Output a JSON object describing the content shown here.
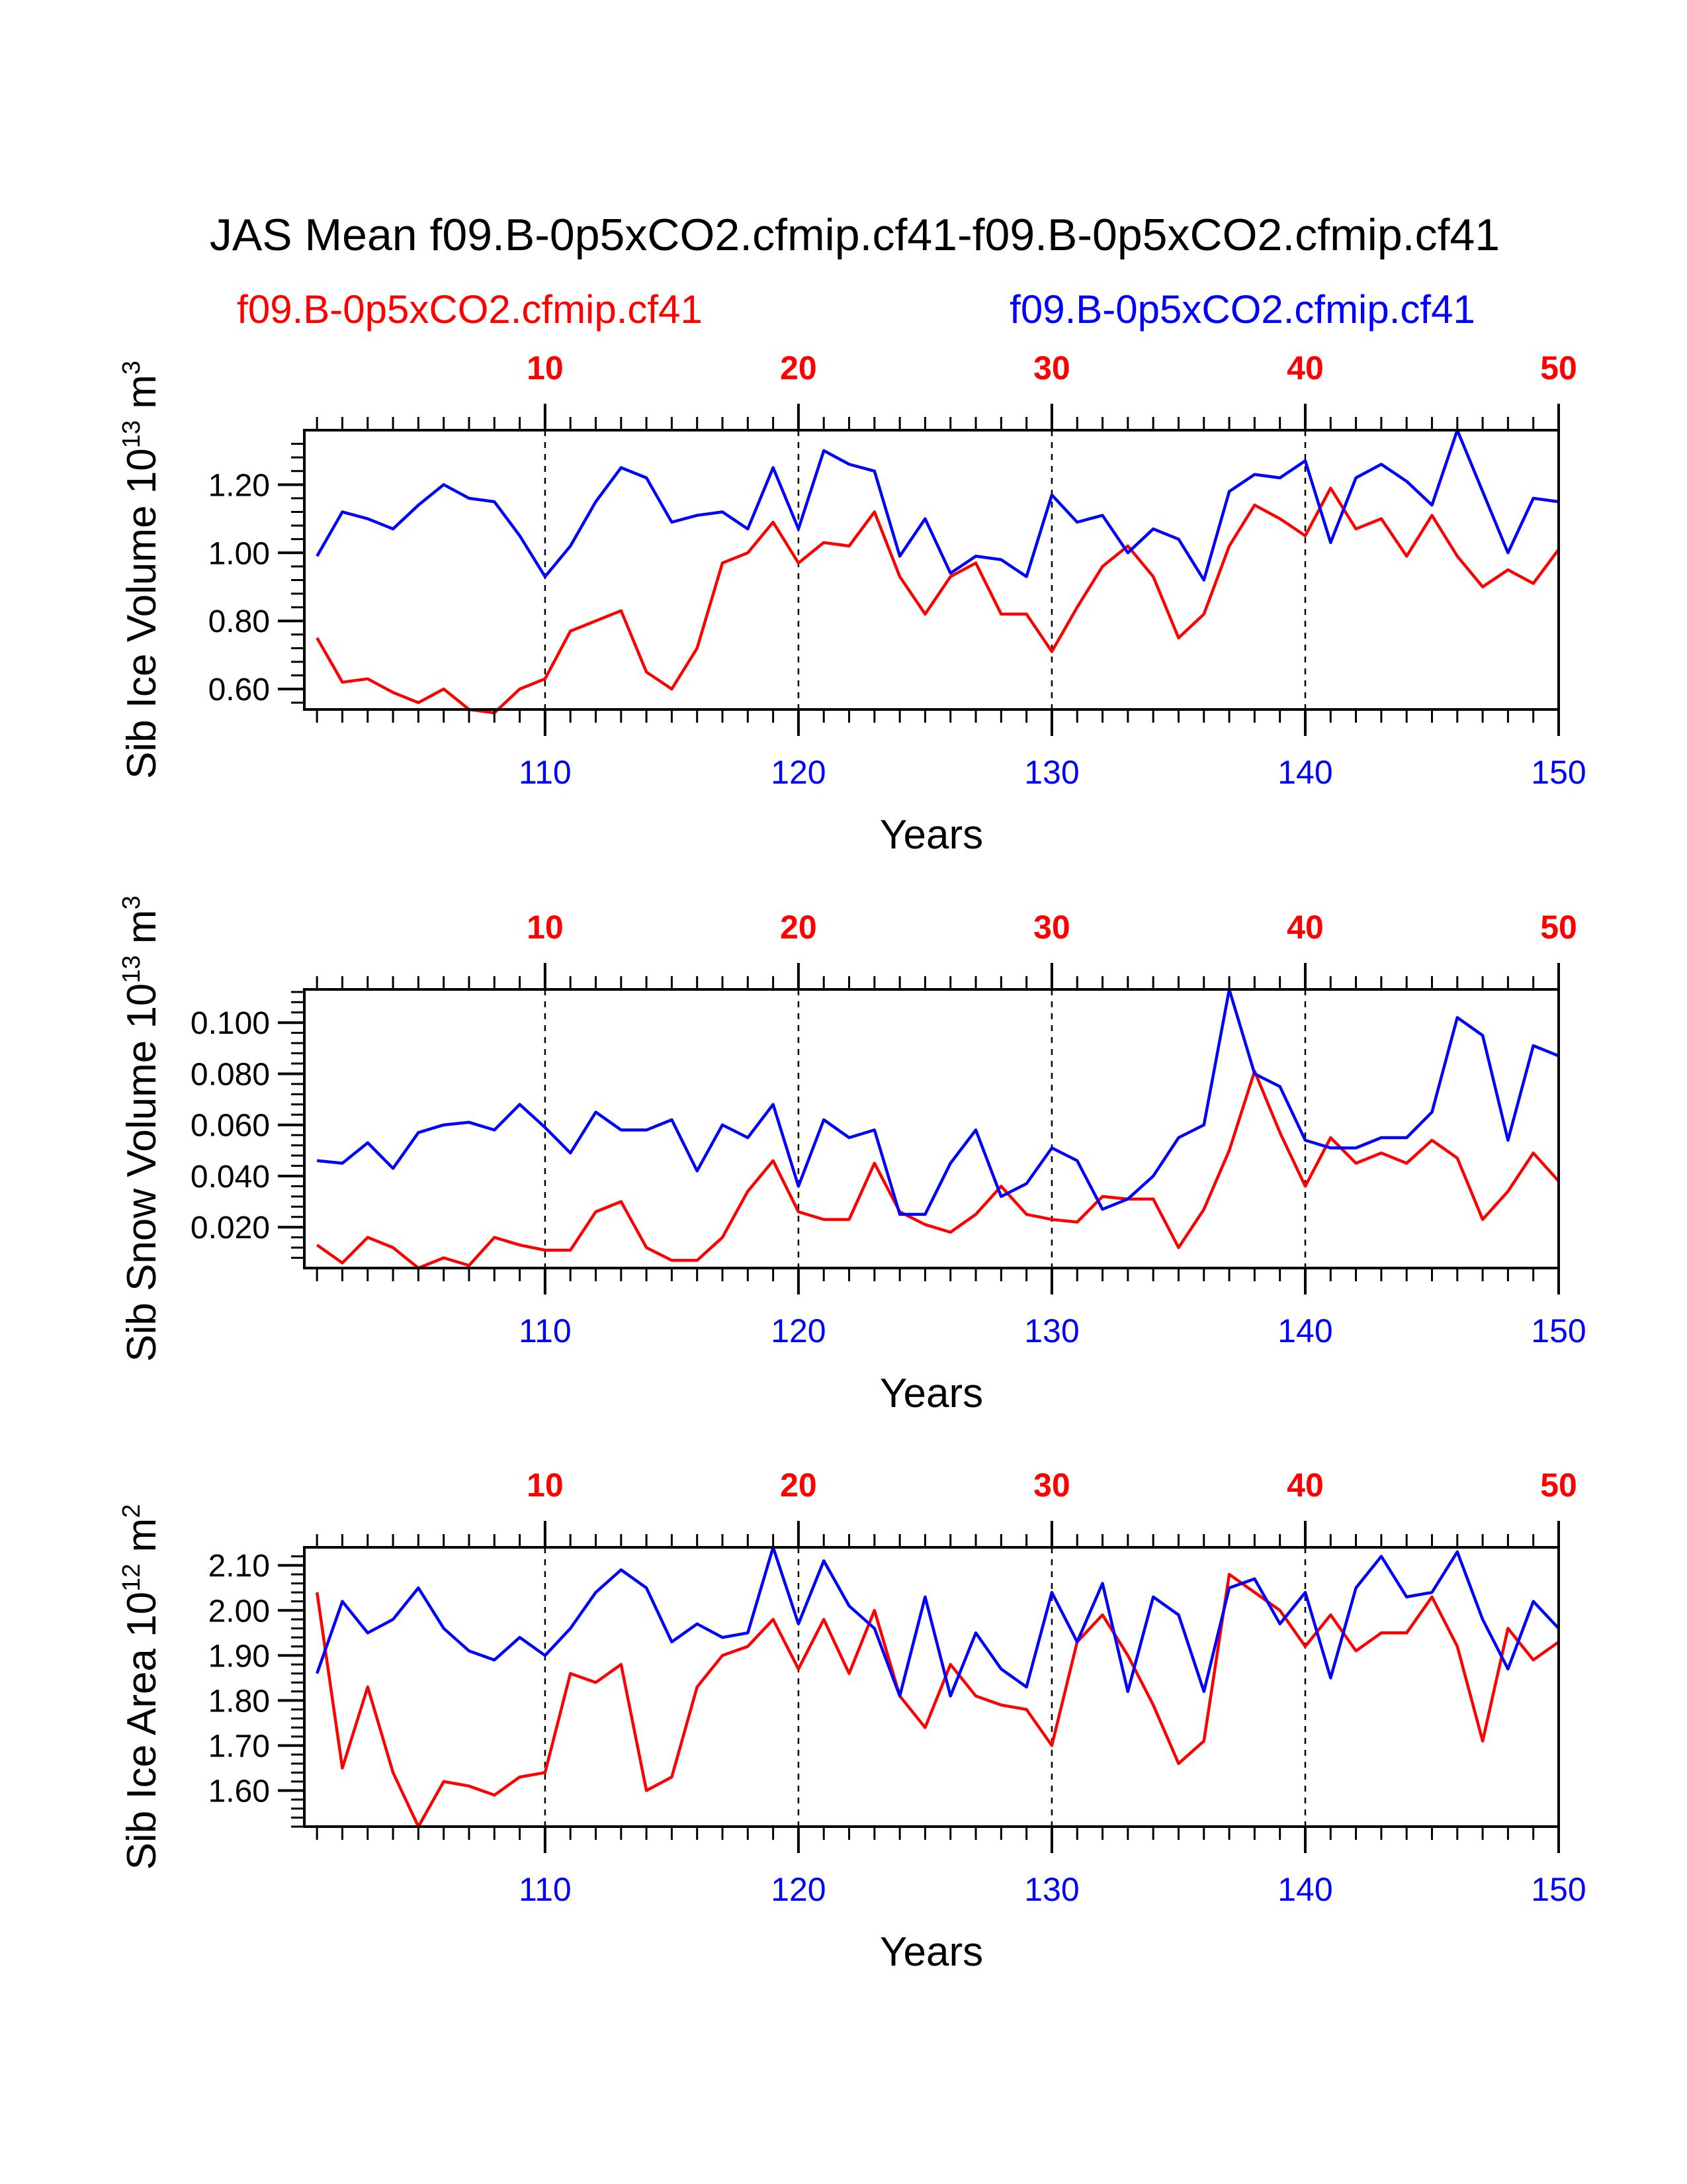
{
  "title": "JAS Mean f09.B-0p5xCO2.cfmip.cf41-f09.B-0p5xCO2.cfmip.cf41",
  "legend": {
    "left": "f09.B-0p5xCO2.cfmip.cf41",
    "right": "f09.B-0p5xCO2.cfmip.cf41"
  },
  "colors": {
    "red": "#ff0000",
    "blue": "#0000ff",
    "axis": "#000000"
  },
  "chart_data": [
    {
      "type": "line",
      "ylabel": "Sib Ice Volume",
      "yunit_base": "10",
      "yunit_exp": "13",
      "yunit_tail": "m",
      "yunit_tail_exp": "3",
      "xlabel": "Years",
      "xlim": [
        100.5,
        150
      ],
      "ylim": [
        0.54,
        1.36
      ],
      "yticks": [
        0.6,
        0.8,
        1.0,
        1.2
      ],
      "yticklabels": [
        "0.60",
        "0.80",
        "1.00",
        "1.20"
      ],
      "yminor": [
        0.56,
        0.64,
        0.68,
        0.72,
        0.76,
        0.84,
        0.88,
        0.92,
        0.96,
        1.04,
        1.08,
        1.12,
        1.16,
        1.24,
        1.28,
        1.32
      ],
      "xticks": [
        110,
        120,
        130,
        140,
        150
      ],
      "xticklabels": [
        "110",
        "120",
        "130",
        "140",
        "150"
      ],
      "top_ticklabels": [
        "10",
        "20",
        "30",
        "40",
        "50"
      ],
      "vlines": [
        110,
        120,
        130,
        140
      ],
      "x": [
        101,
        102,
        103,
        104,
        105,
        106,
        107,
        108,
        109,
        110,
        111,
        112,
        113,
        114,
        115,
        116,
        117,
        118,
        119,
        120,
        121,
        122,
        123,
        124,
        125,
        126,
        127,
        128,
        129,
        130,
        131,
        132,
        133,
        134,
        135,
        136,
        137,
        138,
        139,
        140,
        141,
        142,
        143,
        144,
        145,
        146,
        147,
        148,
        149,
        150
      ],
      "series": [
        {
          "name": "f09.B-0p5xCO2.cfmip.cf41",
          "color": "#ff0000",
          "values": [
            0.75,
            0.62,
            0.63,
            0.59,
            0.56,
            0.6,
            0.54,
            0.53,
            0.6,
            0.63,
            0.77,
            0.8,
            0.83,
            0.65,
            0.6,
            0.72,
            0.97,
            1.0,
            1.09,
            0.97,
            1.03,
            1.02,
            1.12,
            0.93,
            0.82,
            0.93,
            0.97,
            0.82,
            0.82,
            0.71,
            0.84,
            0.96,
            1.02,
            0.93,
            0.75,
            0.82,
            1.02,
            1.14,
            1.1,
            1.05,
            1.19,
            1.07,
            1.1,
            0.99,
            1.11,
            0.99,
            0.9,
            0.95,
            0.91,
            1.01
          ]
        },
        {
          "name": "f09.B-0p5xCO2.cfmip.cf41",
          "color": "#0000ff",
          "values": [
            0.99,
            1.12,
            1.1,
            1.07,
            1.14,
            1.2,
            1.16,
            1.15,
            1.05,
            0.93,
            1.02,
            1.15,
            1.25,
            1.22,
            1.09,
            1.11,
            1.12,
            1.07,
            1.25,
            1.07,
            1.3,
            1.26,
            1.24,
            0.99,
            1.1,
            0.94,
            0.99,
            0.98,
            0.93,
            1.17,
            1.09,
            1.11,
            1.0,
            1.07,
            1.04,
            0.92,
            1.18,
            1.23,
            1.22,
            1.27,
            1.03,
            1.22,
            1.26,
            1.21,
            1.14,
            1.36,
            1.18,
            1.0,
            1.16,
            1.15
          ]
        }
      ]
    },
    {
      "type": "line",
      "ylabel": "Sib Snow Volume",
      "yunit_base": "10",
      "yunit_exp": "13",
      "yunit_tail": "m",
      "yunit_tail_exp": "3",
      "xlabel": "Years",
      "xlim": [
        100.5,
        150
      ],
      "ylim": [
        0.004,
        0.113
      ],
      "yticks": [
        0.02,
        0.04,
        0.06,
        0.08,
        0.1
      ],
      "yticklabels": [
        "0.020",
        "0.040",
        "0.060",
        "0.080",
        "0.100"
      ],
      "yminor": [
        0.008,
        0.012,
        0.016,
        0.024,
        0.028,
        0.032,
        0.036,
        0.044,
        0.048,
        0.052,
        0.056,
        0.064,
        0.068,
        0.072,
        0.076,
        0.084,
        0.088,
        0.092,
        0.096,
        0.104,
        0.108,
        0.112
      ],
      "xticks": [
        110,
        120,
        130,
        140,
        150
      ],
      "xticklabels": [
        "110",
        "120",
        "130",
        "140",
        "150"
      ],
      "top_ticklabels": [
        "10",
        "20",
        "30",
        "40",
        "50"
      ],
      "vlines": [
        110,
        120,
        130,
        140
      ],
      "x": [
        101,
        102,
        103,
        104,
        105,
        106,
        107,
        108,
        109,
        110,
        111,
        112,
        113,
        114,
        115,
        116,
        117,
        118,
        119,
        120,
        121,
        122,
        123,
        124,
        125,
        126,
        127,
        128,
        129,
        130,
        131,
        132,
        133,
        134,
        135,
        136,
        137,
        138,
        139,
        140,
        141,
        142,
        143,
        144,
        145,
        146,
        147,
        148,
        149,
        150
      ],
      "series": [
        {
          "name": "f09.B-0p5xCO2.cfmip.cf41",
          "color": "#ff0000",
          "values": [
            0.013,
            0.006,
            0.016,
            0.012,
            0.004,
            0.008,
            0.005,
            0.016,
            0.013,
            0.011,
            0.011,
            0.026,
            0.03,
            0.012,
            0.007,
            0.007,
            0.016,
            0.034,
            0.046,
            0.026,
            0.023,
            0.023,
            0.045,
            0.026,
            0.021,
            0.018,
            0.025,
            0.036,
            0.025,
            0.023,
            0.022,
            0.032,
            0.031,
            0.031,
            0.012,
            0.027,
            0.05,
            0.081,
            0.057,
            0.036,
            0.055,
            0.045,
            0.049,
            0.045,
            0.054,
            0.047,
            0.023,
            0.034,
            0.049,
            0.038
          ]
        },
        {
          "name": "f09.B-0p5xCO2.cfmip.cf41",
          "color": "#0000ff",
          "values": [
            0.046,
            0.045,
            0.053,
            0.043,
            0.057,
            0.06,
            0.061,
            0.058,
            0.068,
            0.059,
            0.049,
            0.065,
            0.058,
            0.058,
            0.062,
            0.042,
            0.06,
            0.055,
            0.068,
            0.036,
            0.062,
            0.055,
            0.058,
            0.025,
            0.025,
            0.045,
            0.058,
            0.032,
            0.037,
            0.051,
            0.046,
            0.027,
            0.031,
            0.04,
            0.055,
            0.06,
            0.113,
            0.08,
            0.075,
            0.054,
            0.051,
            0.051,
            0.055,
            0.055,
            0.065,
            0.102,
            0.095,
            0.054,
            0.091,
            0.087
          ]
        }
      ]
    },
    {
      "type": "line",
      "ylabel": "Sib Ice Area",
      "yunit_base": "10",
      "yunit_exp": "12",
      "yunit_tail": "m",
      "yunit_tail_exp": "2",
      "xlabel": "Years",
      "xlim": [
        100.5,
        150
      ],
      "ylim": [
        1.52,
        2.14
      ],
      "yticks": [
        1.6,
        1.7,
        1.8,
        1.9,
        2.0,
        2.1
      ],
      "yticklabels": [
        "1.60",
        "1.70",
        "1.80",
        "1.90",
        "2.00",
        "2.10"
      ],
      "yminor": [
        1.52,
        1.54,
        1.56,
        1.58,
        1.62,
        1.64,
        1.66,
        1.68,
        1.72,
        1.74,
        1.76,
        1.78,
        1.82,
        1.84,
        1.86,
        1.88,
        1.92,
        1.94,
        1.96,
        1.98,
        2.02,
        2.04,
        2.06,
        2.08,
        2.12
      ],
      "xticks": [
        110,
        120,
        130,
        140,
        150
      ],
      "xticklabels": [
        "110",
        "120",
        "130",
        "140",
        "150"
      ],
      "top_ticklabels": [
        "10",
        "20",
        "30",
        "40",
        "50"
      ],
      "vlines": [
        110,
        120,
        130,
        140
      ],
      "x": [
        101,
        102,
        103,
        104,
        105,
        106,
        107,
        108,
        109,
        110,
        111,
        112,
        113,
        114,
        115,
        116,
        117,
        118,
        119,
        120,
        121,
        122,
        123,
        124,
        125,
        126,
        127,
        128,
        129,
        130,
        131,
        132,
        133,
        134,
        135,
        136,
        137,
        138,
        139,
        140,
        141,
        142,
        143,
        144,
        145,
        146,
        147,
        148,
        149,
        150
      ],
      "series": [
        {
          "name": "f09.B-0p5xCO2.cfmip.cf41",
          "color": "#ff0000",
          "values": [
            2.04,
            1.65,
            1.83,
            1.64,
            1.52,
            1.62,
            1.61,
            1.59,
            1.63,
            1.64,
            1.86,
            1.84,
            1.88,
            1.6,
            1.63,
            1.83,
            1.9,
            1.92,
            1.98,
            1.87,
            1.98,
            1.86,
            2.0,
            1.81,
            1.74,
            1.88,
            1.81,
            1.79,
            1.78,
            1.7,
            1.93,
            1.99,
            1.9,
            1.79,
            1.66,
            1.71,
            2.08,
            2.04,
            2.0,
            1.92,
            1.99,
            1.91,
            1.95,
            1.95,
            2.03,
            1.92,
            1.71,
            1.96,
            1.89,
            1.93
          ]
        },
        {
          "name": "f09.B-0p5xCO2.cfmip.cf41",
          "color": "#0000ff",
          "values": [
            1.86,
            2.02,
            1.95,
            1.98,
            2.05,
            1.96,
            1.91,
            1.89,
            1.94,
            1.9,
            1.96,
            2.04,
            2.09,
            2.05,
            1.93,
            1.97,
            1.94,
            1.95,
            2.14,
            1.97,
            2.11,
            2.01,
            1.96,
            1.81,
            2.03,
            1.81,
            1.95,
            1.87,
            1.83,
            2.04,
            1.93,
            2.06,
            1.82,
            2.03,
            1.99,
            1.82,
            2.05,
            2.07,
            1.97,
            2.04,
            1.85,
            2.05,
            2.12,
            2.03,
            2.04,
            2.13,
            1.98,
            1.87,
            2.02,
            1.96
          ]
        }
      ]
    }
  ]
}
